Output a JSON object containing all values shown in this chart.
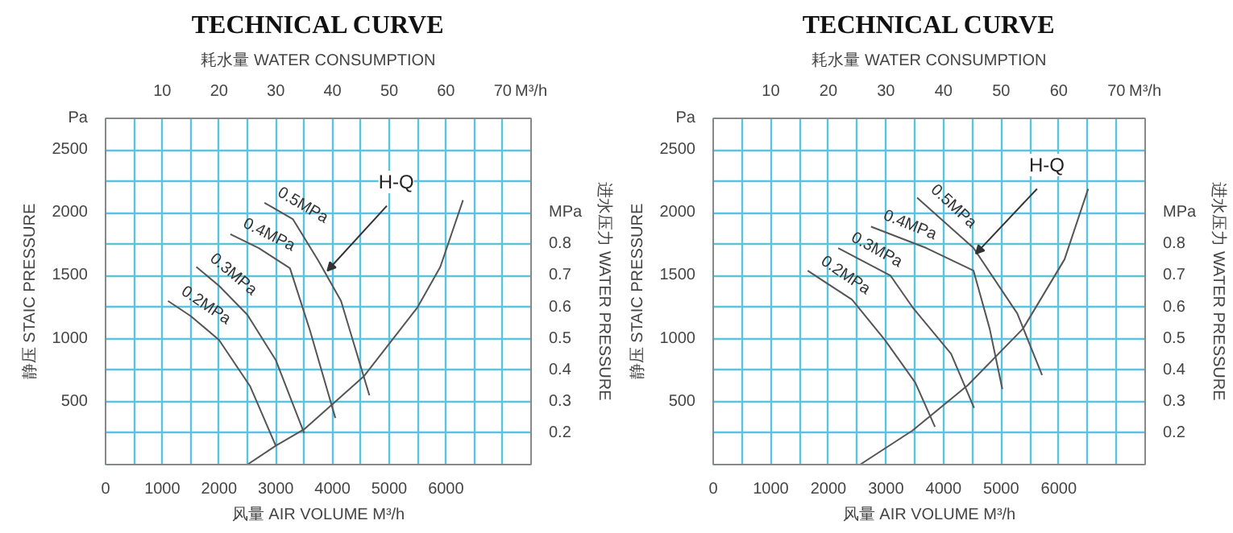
{
  "chart_data": [
    {
      "type": "line",
      "title": "TECHNICAL CURVE",
      "xlabel": "风量 AIR VOLUME M³/h",
      "x2label": "耗水量 WATER CONSUMPTION",
      "ylabel": "静压 STAIC PRESSURE",
      "y2label": "进水压力 WATER PRESSURE",
      "xlim": [
        0,
        7500
      ],
      "xticks": [
        0,
        {
          "value": 500,
          "label": null
        },
        1000,
        {
          "value": 1500,
          "label": null
        },
        2000,
        {
          "value": 2500,
          "label": null
        },
        3000,
        {
          "value": 3500,
          "label": null
        },
        4000,
        {
          "value": 4500,
          "label": null
        },
        5000,
        {
          "value": 5500,
          "label": null
        },
        6000,
        {
          "value": 6500,
          "label": null
        },
        {
          "value": 7000,
          "label": null
        },
        {
          "value": 7500,
          "label": null
        }
      ],
      "x2lim": [
        0,
        75
      ],
      "x2ticks": [
        10,
        20,
        30,
        40,
        50,
        60,
        70,
        {
          "value": 75,
          "label": "M³/h"
        }
      ],
      "ylim": [
        0,
        2750
      ],
      "yticks": [
        {
          "value": 250,
          "label": null
        },
        500,
        {
          "value": 750,
          "label": null
        },
        1000,
        {
          "value": 1250,
          "label": null
        },
        1500,
        {
          "value": 1750,
          "label": null
        },
        2000,
        {
          "value": 2250,
          "label": null
        },
        2500,
        {
          "value": 2750,
          "label": "Pa"
        }
      ],
      "y2lim": [
        0.1,
        1.2
      ],
      "y2ticks": [
        0.2,
        0.3,
        0.4,
        0.5,
        0.6,
        0.7,
        0.8,
        {
          "value": 0.9,
          "label": "MPa"
        }
      ],
      "grid": true,
      "line_style": "solid",
      "series": [
        {
          "name": "0.2MPa",
          "color": "#555555",
          "x": [
            1100,
            1500,
            2000,
            2550,
            3000
          ],
          "values": [
            1300,
            1180,
            990,
            620,
            150
          ]
        },
        {
          "name": "0.3MPa",
          "color": "#555555",
          "x": [
            1600,
            2000,
            2500,
            3000,
            3500
          ],
          "values": [
            1570,
            1420,
            1190,
            830,
            250
          ]
        },
        {
          "name": "0.4MPa",
          "color": "#555555",
          "x": [
            2200,
            2700,
            3250,
            3600,
            4050
          ],
          "values": [
            1830,
            1720,
            1560,
            1070,
            370
          ]
        },
        {
          "name": "0.5MPa",
          "color": "#555555",
          "x": [
            2800,
            3300,
            3750,
            4150,
            4650
          ],
          "values": [
            2080,
            1950,
            1620,
            1300,
            550
          ]
        },
        {
          "color": "#555555",
          "x": [
            2500,
            3000,
            3500,
            4000,
            4550,
            5500,
            5900,
            6300
          ],
          "values": [
            0,
            150,
            280,
            480,
            700,
            1250,
            1570,
            2100
          ]
        }
      ],
      "annotations": [
        {
          "text": "H-Q",
          "x": 3910,
          "y": 1540
        }
      ]
    },
    {
      "type": "line",
      "title": "TECHNICAL CURVE",
      "xlabel": "风量 AIR VOLUME M³/h",
      "x2label": "耗水量 WATER CONSUMPTION",
      "ylabel": "静压 STAIC PRESSURE",
      "y2label": "进水压力 WATER PRESSURE",
      "xlim": [
        0,
        7500
      ],
      "xticks": [
        0,
        {
          "value": 500,
          "label": null
        },
        1000,
        {
          "value": 1500,
          "label": null
        },
        2000,
        {
          "value": 2500,
          "label": null
        },
        3000,
        {
          "value": 3500,
          "label": null
        },
        4000,
        {
          "value": 4500,
          "label": null
        },
        5000,
        {
          "value": 5500,
          "label": null
        },
        6000,
        {
          "value": 6500,
          "label": null
        },
        {
          "value": 7000,
          "label": null
        },
        {
          "value": 7500,
          "label": null
        }
      ],
      "x2lim": [
        0,
        75
      ],
      "x2ticks": [
        10,
        20,
        30,
        40,
        50,
        60,
        70,
        {
          "value": 75,
          "label": "M³/h"
        }
      ],
      "ylim": [
        0,
        2750
      ],
      "yticks": [
        {
          "value": 250,
          "label": null
        },
        500,
        {
          "value": 750,
          "label": null
        },
        1000,
        {
          "value": 1250,
          "label": null
        },
        1500,
        {
          "value": 1750,
          "label": null
        },
        2000,
        {
          "value": 2250,
          "label": null
        },
        2500,
        {
          "value": 2750,
          "label": "Pa"
        }
      ],
      "y2lim": [
        0.1,
        1.2
      ],
      "y2ticks": [
        0.2,
        0.3,
        0.4,
        0.5,
        0.6,
        0.7,
        0.8,
        {
          "value": 0.9,
          "label": "MPa"
        }
      ],
      "grid": true,
      "line_style": "solid",
      "series": [
        {
          "name": "0.2MPa",
          "color": "#555555",
          "x": [
            1640,
            2410,
            2980,
            3510,
            3850
          ],
          "values": [
            1540,
            1310,
            990,
            650,
            300
          ]
        },
        {
          "name": "0.3MPa",
          "color": "#555555",
          "x": [
            2170,
            3080,
            3460,
            4130,
            4530
          ],
          "values": [
            1720,
            1500,
            1250,
            880,
            450
          ]
        },
        {
          "name": "0.4MPa",
          "color": "#555555",
          "x": [
            2740,
            3700,
            4520,
            4800,
            5020
          ],
          "values": [
            1890,
            1720,
            1540,
            1080,
            600
          ]
        },
        {
          "name": "0.5MPa",
          "color": "#555555",
          "x": [
            3540,
            4520,
            5280,
            5710
          ],
          "values": [
            2120,
            1720,
            1200,
            710
          ]
        },
        {
          "color": "#555555",
          "x": [
            2550,
            3460,
            4420,
            5380,
            6100,
            6510
          ],
          "values": [
            0,
            270,
            630,
            1080,
            1630,
            2190
          ]
        }
      ],
      "annotations": [
        {
          "text": "H-Q",
          "x": 4560,
          "y": 1675
        }
      ]
    }
  ]
}
